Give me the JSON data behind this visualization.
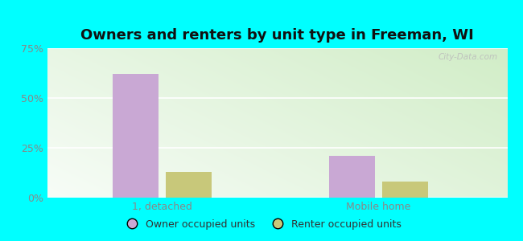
{
  "title": "Owners and renters by unit type in Freeman, WI",
  "categories": [
    "1, detached",
    "Mobile home"
  ],
  "owner_values": [
    62.0,
    21.0
  ],
  "renter_values": [
    13.0,
    8.0
  ],
  "owner_color": "#c9a8d4",
  "renter_color": "#c8c87a",
  "ylim": [
    0,
    75
  ],
  "yticks": [
    0,
    25,
    50,
    75
  ],
  "yticklabels": [
    "0%",
    "25%",
    "50%",
    "75%"
  ],
  "legend_owner": "Owner occupied units",
  "legend_renter": "Renter occupied units",
  "title_fontsize": 13,
  "tick_fontsize": 9,
  "legend_fontsize": 9,
  "outer_bg": "#00ffff",
  "watermark": "City-Data.com"
}
